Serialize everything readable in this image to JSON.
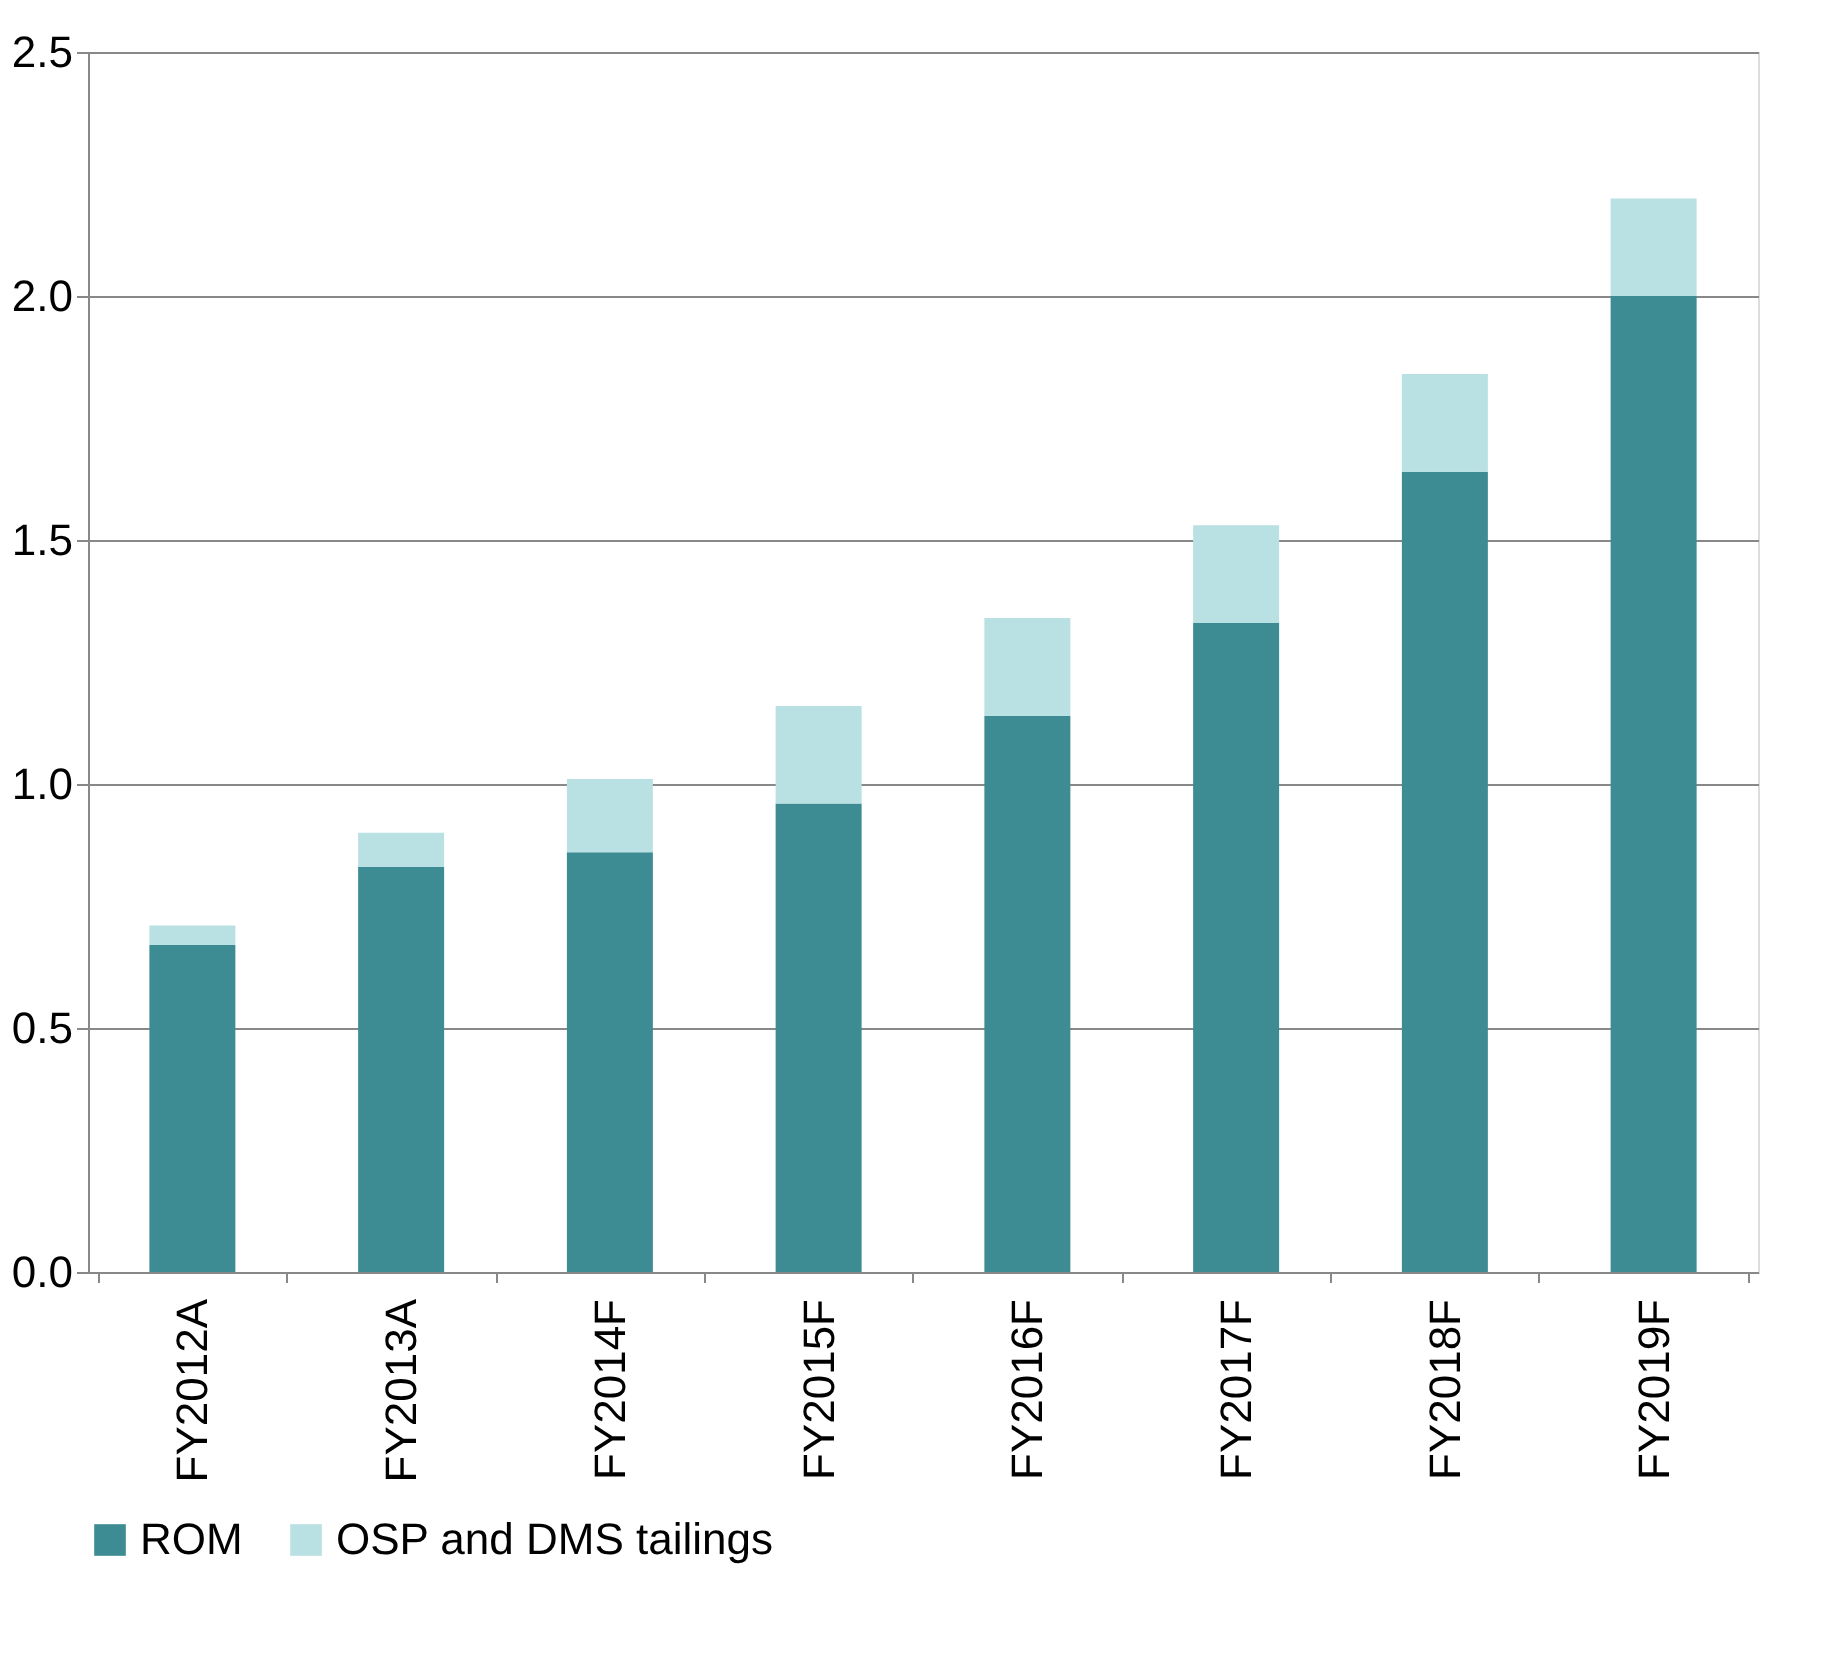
{
  "chart_data": {
    "type": "bar",
    "stacked": true,
    "categories": [
      "FY2012A",
      "FY2013A",
      "FY2014F",
      "FY2015F",
      "FY2016F",
      "FY2017F",
      "FY2018F",
      "FY2019F"
    ],
    "series": [
      {
        "name": "ROM",
        "color": "#3d8c93",
        "values": [
          0.67,
          0.83,
          0.86,
          0.96,
          1.14,
          1.33,
          1.64,
          2.0
        ]
      },
      {
        "name": "OSP and DMS tailings",
        "color": "#b9e0e3",
        "values": [
          0.04,
          0.07,
          0.15,
          0.2,
          0.2,
          0.2,
          0.2,
          0.2
        ]
      }
    ],
    "ylim": [
      0,
      2.5
    ],
    "yticks": [
      {
        "value": 0,
        "label": "0.0"
      },
      {
        "value": 0.5,
        "label": "0.5"
      },
      {
        "value": 1,
        "label": "1.0"
      },
      {
        "value": 1.5,
        "label": "1.5"
      },
      {
        "value": 2,
        "label": "2.0"
      },
      {
        "value": 2.5,
        "label": "2.5"
      }
    ],
    "grid": "y",
    "legend": "bottom"
  }
}
